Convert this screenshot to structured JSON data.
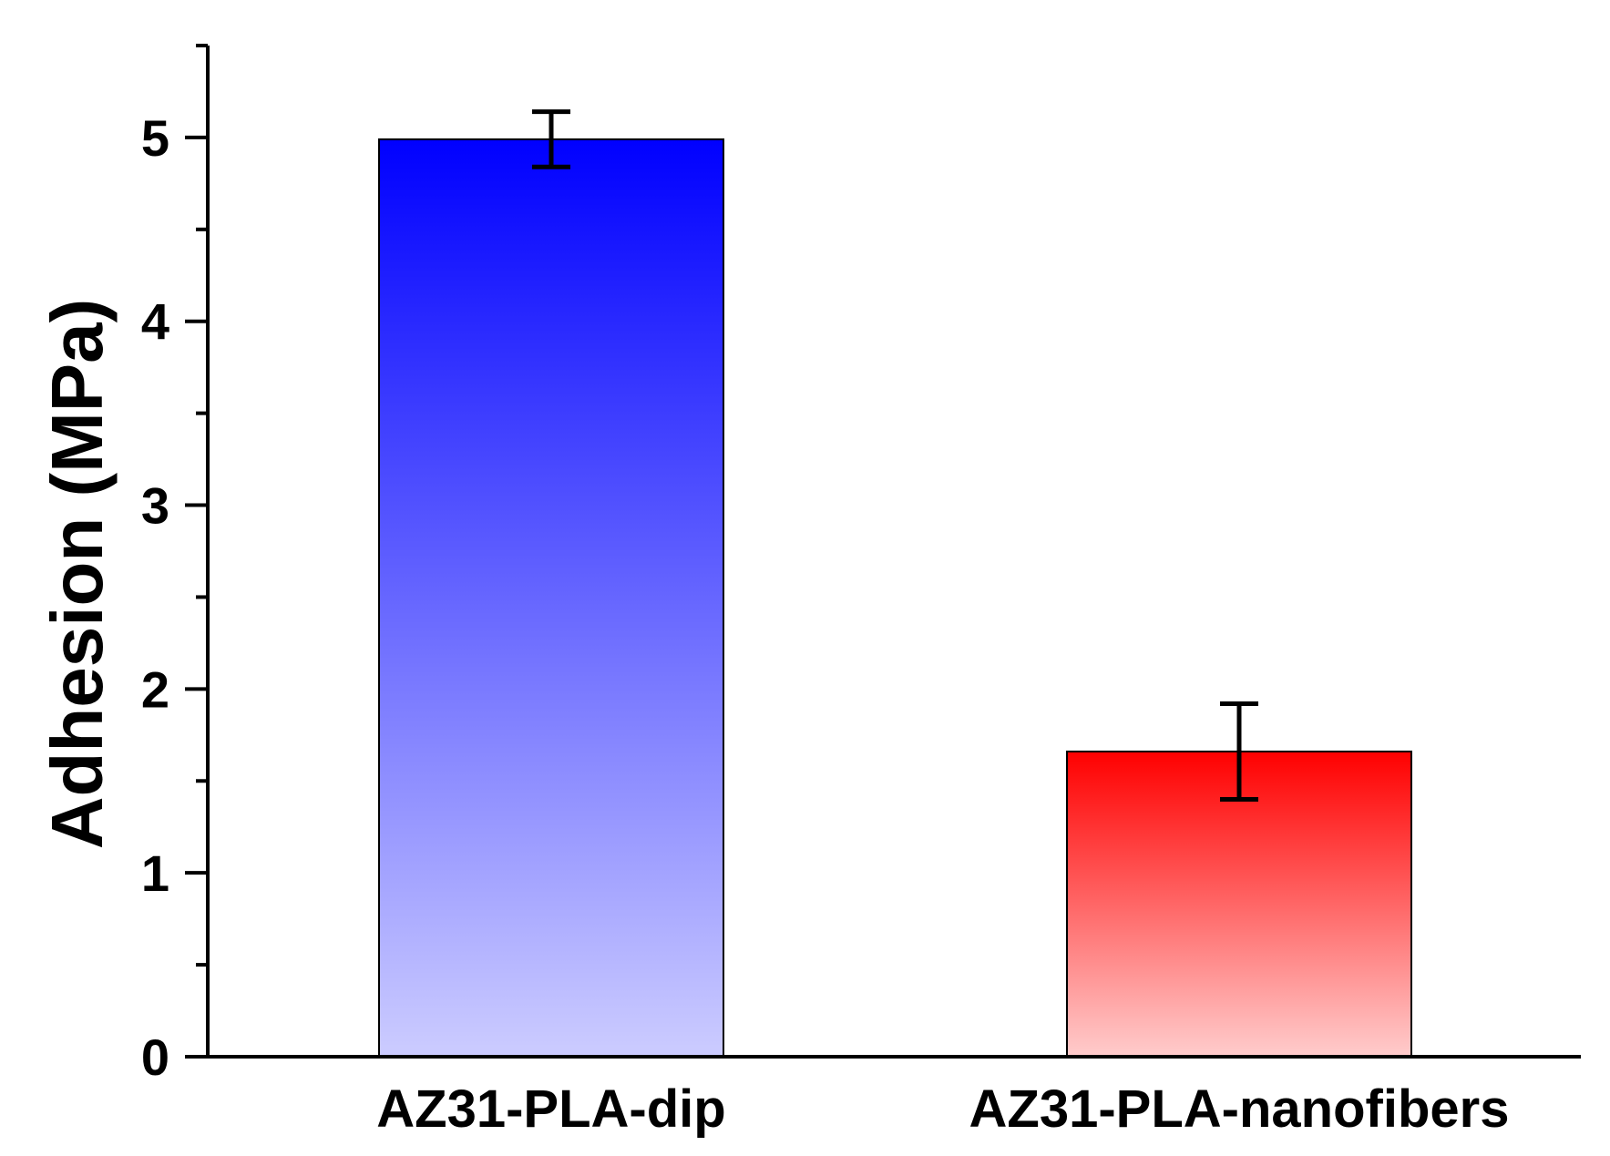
{
  "chart_data": {
    "type": "bar",
    "title": "",
    "xlabel": "",
    "ylabel": "Adhesion (MPa)",
    "ylim": [
      0,
      5.5
    ],
    "yticks": [
      0,
      1,
      2,
      3,
      4,
      5
    ],
    "yticks_minor": [
      0.5,
      1.5,
      2.5,
      3.5,
      4.5,
      5.5
    ],
    "grid": false,
    "legend": "none",
    "categories": [
      "AZ31-PLA-dip",
      "AZ31-PLA-nanofibers"
    ],
    "values": [
      4.99,
      1.66
    ],
    "errors": [
      0.15,
      0.26
    ],
    "bar_colors": [
      {
        "top": "#0000ff",
        "bottom": "#ccccff"
      },
      {
        "top": "#ff0000",
        "bottom": "#ffcccc"
      }
    ]
  }
}
